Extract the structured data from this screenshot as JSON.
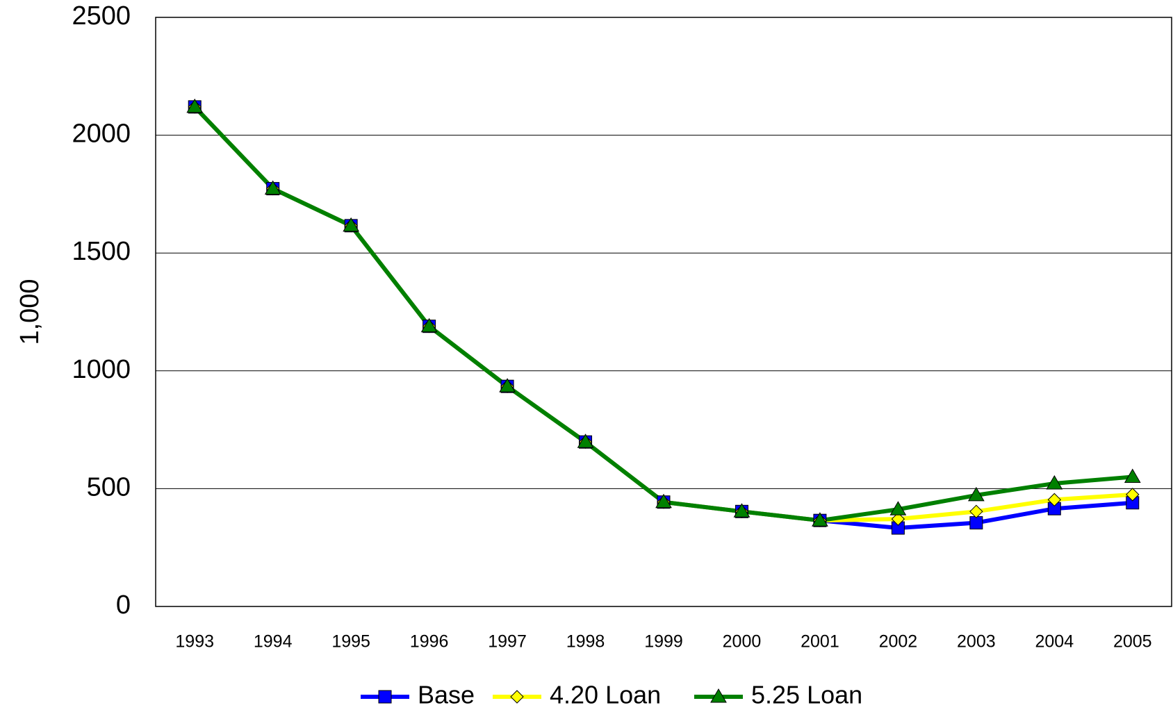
{
  "chart_data": {
    "type": "line",
    "y_label": "1,000",
    "categories": [
      "1993",
      "1994",
      "1995",
      "1996",
      "1997",
      "1998",
      "1999",
      "2000",
      "2001",
      "2002",
      "2003",
      "2004",
      "2005"
    ],
    "series": [
      {
        "name": "Base",
        "color": "#0000ff",
        "marker": "square",
        "values": [
          2120,
          1773,
          1616,
          1189,
          934,
          698,
          443,
          403,
          365,
          333,
          355,
          415,
          440
        ]
      },
      {
        "name": "4.20 Loan",
        "color": "#ffff00",
        "marker": "diamond",
        "values": [
          2120,
          1773,
          1616,
          1189,
          934,
          698,
          443,
          403,
          365,
          371,
          403,
          453,
          475
        ]
      },
      {
        "name": "5.25 Loan",
        "color": "#008000",
        "marker": "triangle",
        "values": [
          2120,
          1773,
          1616,
          1189,
          934,
          698,
          443,
          403,
          365,
          412,
          472,
          522,
          550
        ]
      }
    ],
    "ylim": [
      0,
      2500
    ],
    "yticks": [
      0,
      500,
      1000,
      1500,
      2000,
      2500
    ],
    "grid": true,
    "legend": "bottom"
  }
}
